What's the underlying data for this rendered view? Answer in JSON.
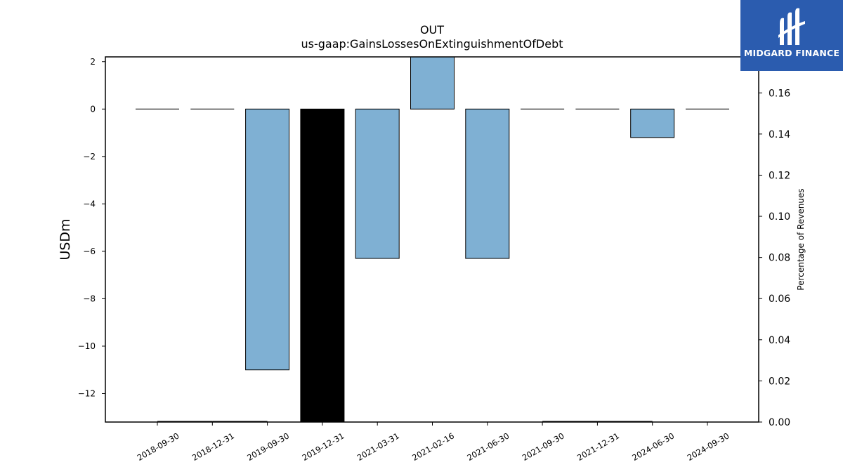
{
  "brand": {
    "name": "MIDGARD FINANCE",
    "logo_icon": "midgard-logo-icon",
    "color": "#2b5caf"
  },
  "chart_data": {
    "type": "bar",
    "title": "OUT",
    "subtitle": "us-gaap:GainsLossesOnExtinguishmentOfDebt",
    "ylabel": "USDm",
    "y2label": "Percentage of Revenues",
    "categories": [
      "2018-09-30",
      "2018-12-31",
      "2019-09-30",
      "2019-12-31",
      "2021-03-31",
      "2021-02-16",
      "2021-06-30",
      "2021-09-30",
      "2021-12-31",
      "2024-06-30",
      "2024-09-30"
    ],
    "values": [
      0,
      0,
      -11,
      -13.6,
      -6.3,
      2.3,
      -6.3,
      0,
      0,
      -1.2,
      0
    ],
    "bar_colors": [
      "#7fb0d3",
      "#7fb0d3",
      "#7fb0d3",
      "#000000",
      "#7fb0d3",
      "#7fb0d3",
      "#7fb0d3",
      "#7fb0d3",
      "#7fb0d3",
      "#7fb0d3",
      "#7fb0d3"
    ],
    "pct_of_revenues": [
      0.0005,
      0.0005,
      0,
      0,
      0,
      0,
      0,
      0.0005,
      0.0005,
      0,
      0
    ],
    "ylim": [
      -13.2,
      2.2
    ],
    "y2lim": [
      0,
      0.1775
    ],
    "yticks": [
      2,
      0,
      -2,
      -4,
      -6,
      -8,
      -10,
      -12
    ],
    "ytick_labels": [
      "2",
      "0",
      "−2",
      "−4",
      "−6",
      "−8",
      "−10",
      "−12"
    ],
    "y2ticks": [
      0.16,
      0.14,
      0.12,
      0.1,
      0.08,
      0.06,
      0.04,
      0.02,
      0.0
    ],
    "y2tick_labels": [
      "0.16",
      "0.14",
      "0.12",
      "0.10",
      "0.08",
      "0.06",
      "0.04",
      "0.02",
      "0.00"
    ],
    "grid": false,
    "legend": "none"
  }
}
